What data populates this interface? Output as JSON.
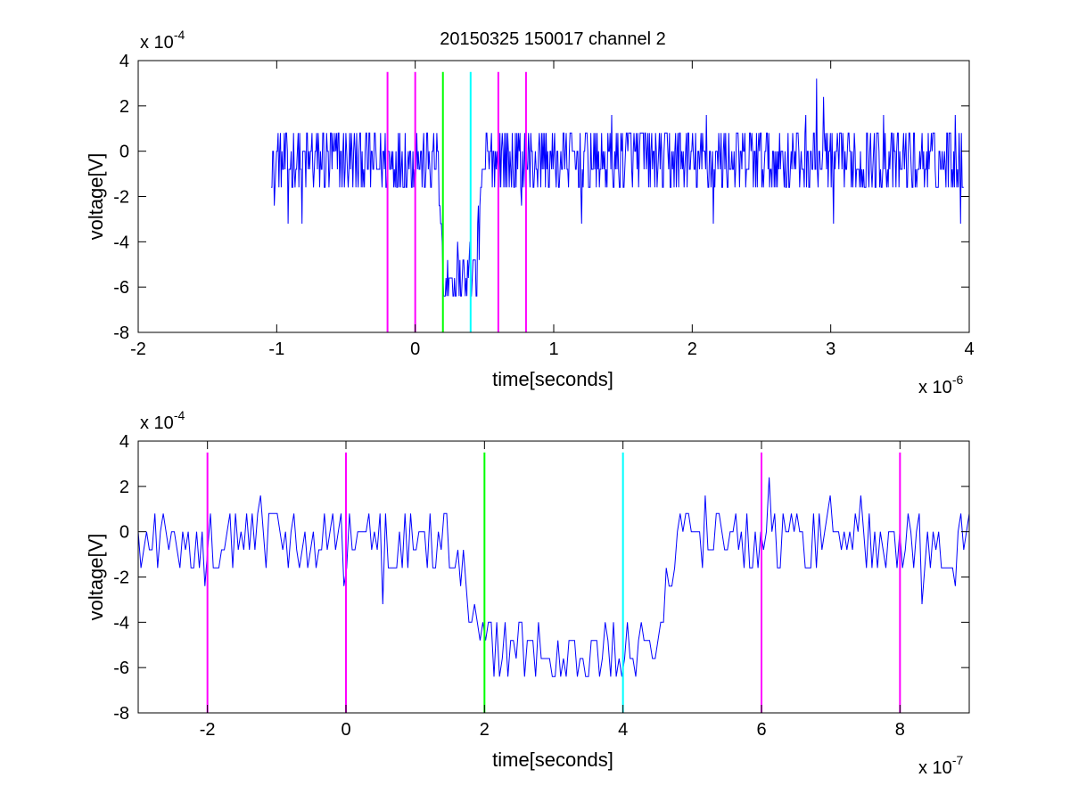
{
  "title": "20150325 150017 channel 2",
  "colors": {
    "trace": "#0000ff",
    "marker_magenta": "#ff00ff",
    "marker_green": "#00ff00",
    "marker_cyan": "#00ffff",
    "axes": "#000000",
    "background": "#ffffff"
  },
  "chart_data": [
    {
      "type": "line",
      "name": "overview",
      "xlabel": "time[seconds]",
      "ylabel": "voltage[V]",
      "x_exponent_label": "x 10",
      "x_exponent": "-6",
      "y_exponent_label": "x 10",
      "y_exponent": "-4",
      "x_unit_scale": 1e-06,
      "y_unit_scale": 0.0001,
      "xlim": [
        -2,
        4
      ],
      "ylim": [
        -8,
        4
      ],
      "xticks": [
        "-2",
        "-1",
        "0",
        "1",
        "2",
        "3",
        "4"
      ],
      "yticks": [
        "-8",
        "-6",
        "-4",
        "-2",
        "0",
        "2",
        "4"
      ],
      "xtick_values": [
        -2,
        -1,
        0,
        1,
        2,
        3,
        4
      ],
      "ytick_values": [
        -8,
        -6,
        -4,
        -2,
        0,
        2,
        4
      ],
      "grid": false,
      "series": [
        {
          "color": "#0000ff",
          "x_start": -1.04,
          "x_end": 3.96,
          "noise_levels": [
            -1.6,
            -0.8,
            0,
            0.8
          ],
          "spikes": [
            [
              -1.02,
              -2.4
            ],
            [
              -0.92,
              -3.2
            ],
            [
              -0.82,
              -3.2
            ],
            [
              0.77,
              -2.4
            ],
            [
              1.2,
              -3.2
            ],
            [
              1.42,
              1.6
            ],
            [
              2.1,
              1.6
            ],
            [
              2.15,
              -3.2
            ],
            [
              2.82,
              1.6
            ],
            [
              2.9,
              3.2
            ],
            [
              2.95,
              2.4
            ],
            [
              3.02,
              -3.2
            ],
            [
              3.38,
              1.6
            ],
            [
              3.9,
              1.6
            ],
            [
              3.94,
              -3.2
            ]
          ],
          "dip": {
            "start": 0.16,
            "fall_end": 0.2,
            "rise_start": 0.44,
            "end": 0.5,
            "bottom": -5.4,
            "min": -7.2
          }
        }
      ],
      "vlines": [
        {
          "x": -0.2,
          "color": "magenta"
        },
        {
          "x": 0,
          "color": "magenta"
        },
        {
          "x": 0.2,
          "color": "green"
        },
        {
          "x": 0.4,
          "color": "cyan"
        },
        {
          "x": 0.6,
          "color": "magenta"
        },
        {
          "x": 0.8,
          "color": "magenta"
        }
      ],
      "vline_ylim": [
        -8,
        3.5
      ]
    },
    {
      "type": "line",
      "name": "zoom",
      "xlabel": "time[seconds]",
      "ylabel": "voltage[V]",
      "x_exponent_label": "x 10",
      "x_exponent": "-7",
      "y_exponent_label": "x 10",
      "y_exponent": "-4",
      "x_unit_scale": 1e-07,
      "y_unit_scale": 0.0001,
      "xlim": [
        -3,
        9
      ],
      "ylim": [
        -8,
        4
      ],
      "xticks": [
        "-2",
        "0",
        "2",
        "4",
        "6",
        "8"
      ],
      "yticks": [
        "-8",
        "-6",
        "-4",
        "-2",
        "0",
        "2",
        "4"
      ],
      "xtick_values": [
        -2,
        0,
        2,
        4,
        6,
        8
      ],
      "ytick_values": [
        -8,
        -6,
        -4,
        -2,
        0,
        2,
        4
      ],
      "grid": false,
      "series": [
        {
          "color": "#0000ff",
          "x_start": -3,
          "x_end": 9,
          "noise_levels": [
            -1.6,
            -0.8,
            0,
            0.8
          ],
          "spikes": [
            [
              -2.05,
              -2.4
            ],
            [
              -1.25,
              1.6
            ],
            [
              -0.05,
              -2.4
            ],
            [
              0.55,
              -3.2
            ],
            [
              1.5,
              -1.6
            ],
            [
              5.2,
              1.6
            ],
            [
              6.1,
              2.4
            ],
            [
              7.0,
              1.6
            ],
            [
              7.45,
              1.6
            ],
            [
              8.3,
              -3.2
            ],
            [
              8.8,
              -2.4
            ]
          ],
          "dip": {
            "start": 1.6,
            "fall_end": 1.9,
            "rise_start": 4.4,
            "end": 4.8,
            "bottom": -5.4,
            "min": -7.2
          }
        }
      ],
      "vlines": [
        {
          "x": -2,
          "color": "magenta"
        },
        {
          "x": 0,
          "color": "magenta"
        },
        {
          "x": 2,
          "color": "green"
        },
        {
          "x": 4,
          "color": "cyan"
        },
        {
          "x": 6,
          "color": "magenta"
        },
        {
          "x": 8,
          "color": "magenta"
        }
      ],
      "vline_ylim": [
        -8,
        3.5
      ]
    }
  ]
}
